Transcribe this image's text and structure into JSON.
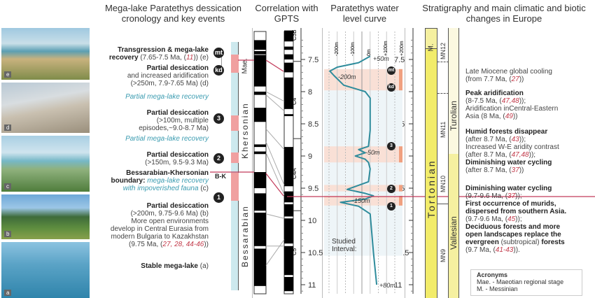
{
  "headers": {
    "events": "Mega-lake Paratethys dessication cronology and key events",
    "gpts": "Correlation with GPTS",
    "water": "Paratethys water level curve",
    "strat": "Stratigraphy and main climatic and biotic changes in Europe"
  },
  "photos": [
    {
      "label": "e"
    },
    {
      "label": "d"
    },
    {
      "label": "c"
    },
    {
      "label": "b"
    },
    {
      "label": "a"
    }
  ],
  "events": {
    "e_title": "Transgression & mega-lake",
    "e_title2": "recovery",
    "e_detail": " (7.65-7.5 Ma, (",
    "e_ref": "11",
    "e_tail": ")) (e)",
    "d_title": "Partial desiccation",
    "d_l2": "and increased aridification",
    "d_l3": "(>250m, 7.9-7.65 Ma) (d)",
    "rec1": "Partial mega-lake recovery",
    "e3_title": "Partial desiccation",
    "e3_l2": "(>100m, multiple",
    "e3_l3": "episodes,~9.0-8.7 Ma)",
    "rec2": "Partial mega-lake recovery",
    "e2_title": "Partial desiccation",
    "e2_l2": "(>150m, 9.5-9.3 Ma)",
    "bk_title": "Bessarabian-Khersonian",
    "bk_l2a": "boundary: ",
    "bk_l2b": "mega-lake recovery",
    "bk_l3a": "with impoverished fauna",
    "bk_l3b": " (c)",
    "e1_title": "Partial desiccation",
    "e1_l2": "(>200m, 9.75-9.6 Ma) (b)",
    "e1_l3": "More open environments",
    "e1_l4": "develop in  Central Eurasia from",
    "e1_l5": "modern Bulgaria to Kazakhstan",
    "e1_l6a": "(9.75 Ma, (",
    "e1_refs": "27, 28, 44-46",
    "e1_l6b": "))",
    "a_title": "Stable mega-lake",
    "a_tail": " (a)"
  },
  "markers": {
    "mt": "mt",
    "kd": "kd",
    "n3": "3",
    "n2": "2",
    "n1": "1",
    "bk": "B-K"
  },
  "stages": {
    "mae": "Mae.",
    "khersonian": "Khersonian",
    "bessarabian": "Bessarabian",
    "m": "M.",
    "tortonian": "Tortonian",
    "turolian": "Turolian",
    "vallesian": "Vallesian",
    "mn12": "MN12",
    "mn11": "MN11",
    "mn10": "MN10",
    "mn9": "MN9"
  },
  "chrons": [
    "C3B",
    "C4",
    "C4A",
    "C5"
  ],
  "age_ticks": [
    "7.5",
    "8",
    "8.5",
    "9",
    "9.5",
    "10",
    "10.5",
    "11"
  ],
  "water": {
    "depth_ticks": [
      "-200m",
      "-100m",
      "0m",
      "+100m",
      "+200m"
    ],
    "labels": {
      "p50": "+50m",
      "m200": "-200m",
      "m50": "-50m",
      "m150": "-150m",
      "p80": "+80m",
      "studied": "Studied",
      "interval": "Interval:"
    },
    "curve_age_ma": [
      7.45,
      7.55,
      7.62,
      7.68,
      7.75,
      7.9,
      8.0,
      8.1,
      8.6,
      8.85,
      8.9,
      8.95,
      9.0,
      9.05,
      9.1,
      9.2,
      9.4,
      9.52,
      9.58,
      9.62,
      9.67,
      9.72,
      9.78,
      9.9,
      10.5,
      11.0
    ],
    "curve_level_m": [
      50,
      -20,
      -150,
      -195,
      -170,
      -110,
      20,
      50,
      50,
      40,
      -20,
      20,
      -40,
      20,
      40,
      50,
      40,
      -90,
      20,
      70,
      20,
      -130,
      -20,
      50,
      70,
      90
    ],
    "desiccation_bands_ma": [
      [
        7.65,
        7.98
      ],
      [
        8.85,
        9.1
      ],
      [
        9.45,
        9.55
      ],
      [
        9.62,
        9.77
      ]
    ],
    "studied_interval_ma": [
      7.98,
      10.55
    ]
  },
  "right_text": {
    "r1a": "Late Miocene global cooling",
    "r1b": "(from 7.7 Ma, (",
    "r1ref": "27",
    "r1c": "))",
    "r2a": "Peak aridification",
    "r2b": "(8-7.5 Ma, (",
    "r2ref": "47,48",
    "r2c": "));",
    "r2d": "Aridification inCentral-Eastern",
    "r2e": "Asia (8 Ma, (",
    "r2ref2": "49",
    "r2f": "))",
    "r3a": "Humid forests disappear",
    "r3b": "(after 8.7 Ma, (",
    "r3ref": "43",
    "r3c": "));",
    "r3d": "Increased W-E aridity contrast",
    "r3e": "(after 8.7 Ma, (",
    "r3ref2": "47,48",
    "r3f": "));",
    "r3g": "Diminishing water cycling",
    "r3h": "(after 8.7 Ma, (",
    "r3ref3": "37",
    "r3i": "))",
    "r4a": "Diminishing water cycling",
    "r4b": "(9.7-9.6 Ma, (",
    "r4ref": "37",
    "r4c": "));",
    "r4d": "First occurrence of murids,",
    "r4e": "dispersed from southern Asia.",
    "r4f": "(9.7-9.6 Ma, (",
    "r4ref2": "45",
    "r4g": "));",
    "r4h": "Deciduous forests and more",
    "r4i": "open landscapes replace the",
    "r4j1": "evergreen",
    "r4j2": " (subtropical) ",
    "r4j3": "forests",
    "r4k": "(9.7 Ma, (",
    "r4ref3": "41-43",
    "r4l": "))."
  },
  "acronyms": {
    "title": "Acronyms",
    "l1": "Mae. - Maeotian regional stage",
    "l2": "M. - Messinian"
  },
  "colors": {
    "pink": "#f0a0a0",
    "band": "#f9e0d6",
    "lake": "#cde9ee",
    "curve": "#2f8c9c",
    "yellow": "#f2ec6a",
    "redline": "#c23a5a"
  }
}
